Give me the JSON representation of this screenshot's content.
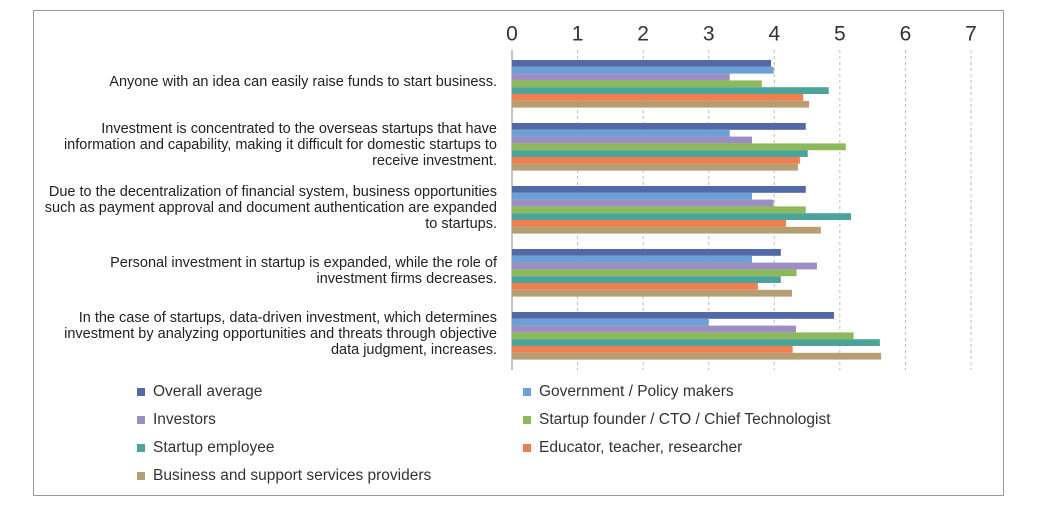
{
  "chart_data": {
    "type": "hbar",
    "categories": [
      "Anyone with an idea can easily raise funds to start business.",
      "Investment is concentrated to the overseas startups that have information and capability, making it difficult for domestic startups to receive investment.",
      "Due to the decentralization of financial system, business opportunities such as payment approval and document authentication are expanded to startups.",
      "Personal investment in startup is expanded, while the role of investment firms decreases.",
      "In the case of startups, data-driven investment, which determines investment by analyzing opportunities and threats through objective data judgment, increases."
    ],
    "series": [
      {
        "name": "Overall average",
        "color": "#5269a8",
        "values": [
          3.95,
          4.48,
          4.48,
          4.1,
          4.91
        ]
      },
      {
        "name": "Government / Policy makers",
        "color": "#6b9fd6",
        "values": [
          3.99,
          3.32,
          3.66,
          3.66,
          3.0
        ]
      },
      {
        "name": "Investors",
        "color": "#9c8dc3",
        "values": [
          3.32,
          3.66,
          3.99,
          4.65,
          4.33
        ]
      },
      {
        "name": "Startup founder / CTO / Chief Technologist",
        "color": "#8cba5a",
        "values": [
          3.81,
          5.09,
          4.48,
          4.34,
          5.21
        ]
      },
      {
        "name": "Startup employee",
        "color": "#4ca39a",
        "values": [
          4.83,
          4.51,
          5.17,
          4.1,
          5.61
        ]
      },
      {
        "name": "Educator, teacher, researcher",
        "color": "#f07e4e",
        "values": [
          4.44,
          4.39,
          4.18,
          3.75,
          4.28
        ]
      },
      {
        "name": "Business and support services providers",
        "color": "#b69e73",
        "values": [
          4.53,
          4.36,
          4.71,
          4.27,
          5.63
        ]
      }
    ],
    "xlim": [
      0,
      7
    ],
    "xticks": [
      0,
      1,
      2,
      3,
      4,
      5,
      6,
      7
    ],
    "grid": true
  }
}
